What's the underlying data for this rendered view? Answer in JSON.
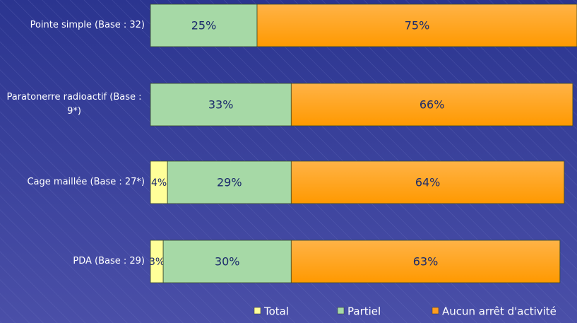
{
  "chart_data": {
    "type": "stacked_bar_horizontal",
    "categories": [
      "Pointe simple (Base : 32)",
      "Paratonerre radioactif (Base : 9*)",
      "Cage maillée (Base : 27*)",
      "PDA (Base : 29)"
    ],
    "xlim": [
      0,
      100
    ],
    "series": [
      {
        "name": "Total",
        "color": "#ffff99",
        "values": [
          null,
          null,
          4,
          3
        ],
        "value_labels": [
          null,
          null,
          "4%",
          "3%"
        ]
      },
      {
        "name": "Partiel",
        "color": "#a6d9a6",
        "values": [
          25,
          33,
          29,
          30
        ],
        "value_labels": [
          "25%",
          "33%",
          "29%",
          "30%"
        ]
      },
      {
        "name": "Aucun arrêt d'activité",
        "color": "#ff9d1e",
        "values": [
          75,
          66,
          64,
          63
        ],
        "value_labels": [
          "75%",
          "66%",
          "64%",
          "63%"
        ]
      }
    ]
  }
}
